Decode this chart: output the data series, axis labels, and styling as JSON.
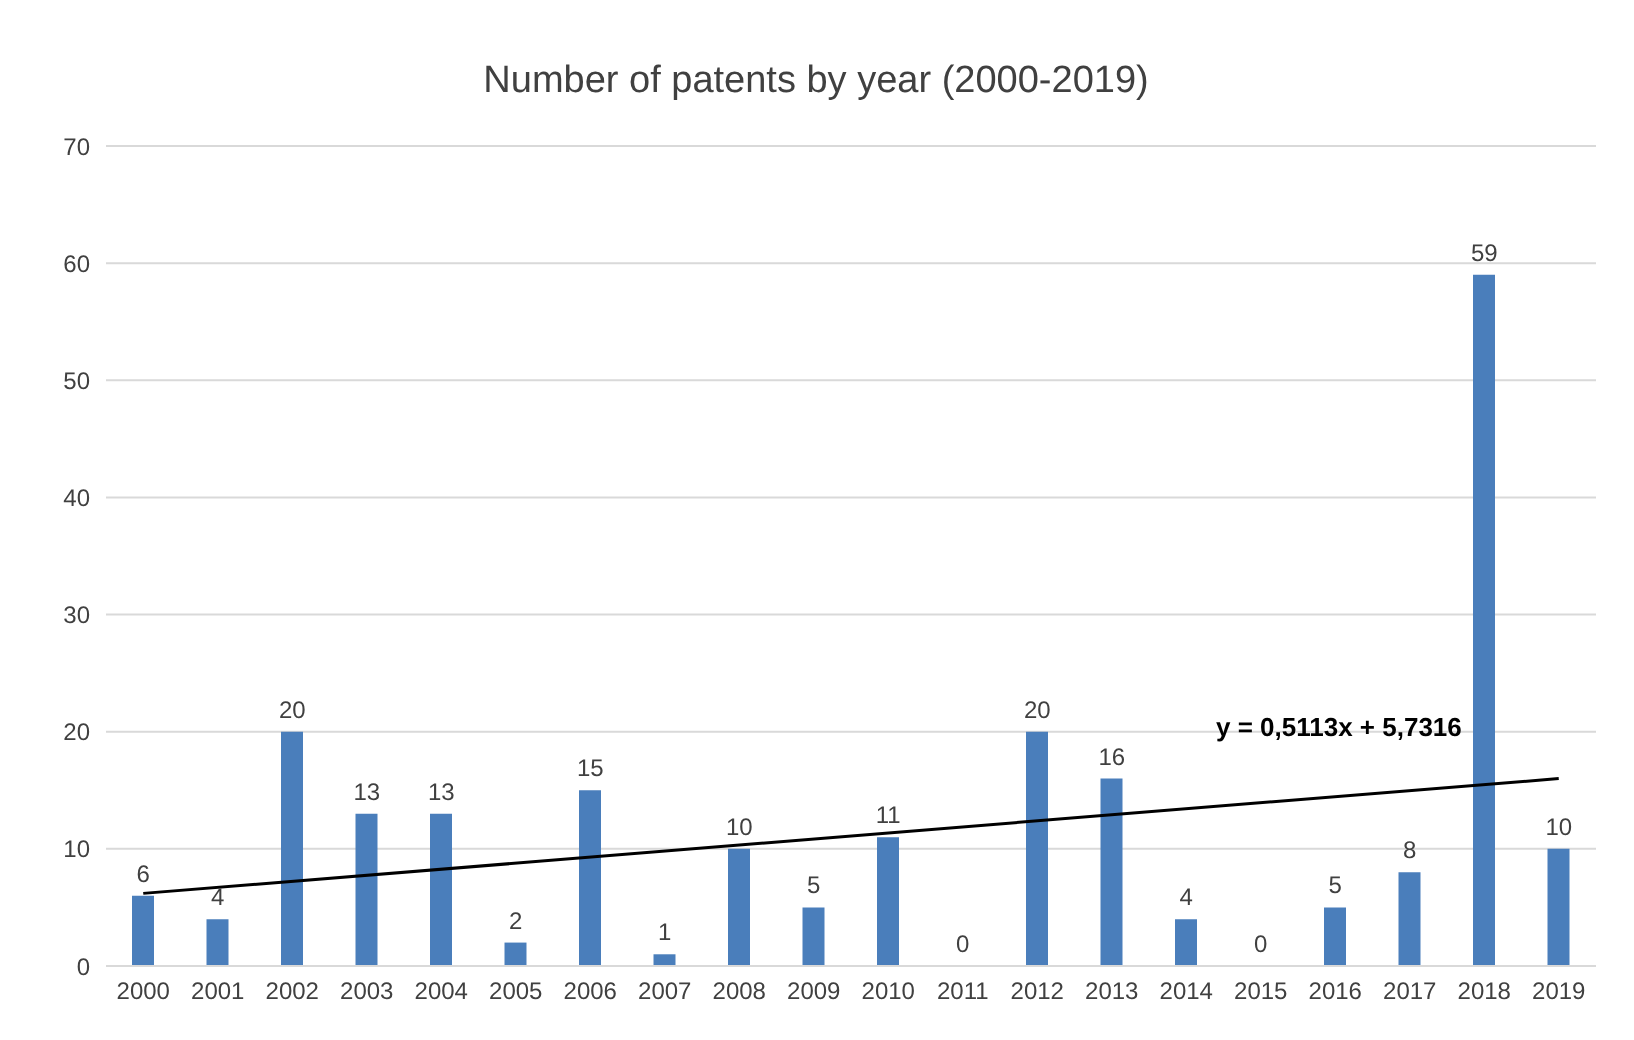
{
  "chart_data": {
    "type": "bar",
    "title": "Number of patents by year (2000-2019)",
    "categories": [
      "2000",
      "2001",
      "2002",
      "2003",
      "2004",
      "2005",
      "2006",
      "2007",
      "2008",
      "2009",
      "2010",
      "2011",
      "2012",
      "2013",
      "2014",
      "2015",
      "2016",
      "2017",
      "2018",
      "2019"
    ],
    "series": [
      {
        "color": "#4a7ebb",
        "values": [
          6,
          4,
          20,
          13,
          13,
          2,
          15,
          1,
          10,
          5,
          11,
          0,
          20,
          16,
          4,
          0,
          5,
          8,
          59,
          10
        ],
        "value_labels": [
          "6",
          "4",
          "20",
          "13",
          "13",
          "2",
          "15",
          "1",
          "10",
          "5",
          "11",
          "0",
          "20",
          "16",
          "4",
          "0",
          "5",
          "8",
          "59",
          "10"
        ]
      },
      {
        "type": "line",
        "color": "#000000",
        "values": [
          6.2,
          null,
          null,
          null,
          null,
          null,
          null,
          null,
          null,
          null,
          null,
          null,
          null,
          null,
          null,
          null,
          null,
          null,
          null,
          16
        ]
      }
    ],
    "ylim": [
      0,
      70
    ],
    "yticks": [
      0,
      10,
      20,
      30,
      40,
      50,
      60,
      70
    ],
    "grid": "y",
    "annotations": [
      "y = 0,5113x + 5,7316"
    ]
  }
}
